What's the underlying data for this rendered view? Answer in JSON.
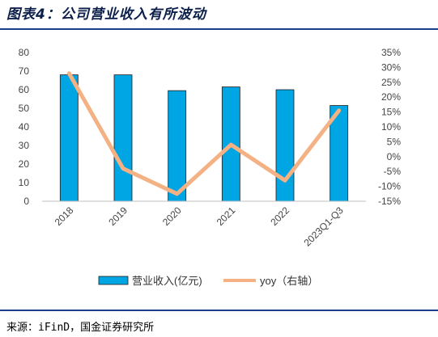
{
  "header": {
    "title": "图表4：公司营业收入有所波动"
  },
  "footer": {
    "source": "来源：iFinD，国金证券研究所"
  },
  "chart_data": {
    "type": "bar",
    "categories": [
      "2018",
      "2019",
      "2020",
      "2021",
      "2022",
      "2023Q1-Q3"
    ],
    "series": [
      {
        "name": "营业收入(亿元)",
        "type": "bar",
        "axis": "left",
        "values": [
          68,
          68,
          59.5,
          61.5,
          60,
          51.5
        ],
        "color": "#00a6e3"
      },
      {
        "name": "yoy（右轴）",
        "type": "line",
        "axis": "right",
        "values": [
          28,
          -4,
          -12.5,
          4,
          -8,
          15.5
        ],
        "color": "#f4b183"
      }
    ],
    "y_left": {
      "ylim": [
        0,
        80
      ],
      "ticks": [
        "0",
        "10",
        "20",
        "30",
        "40",
        "50",
        "60",
        "70",
        "80"
      ]
    },
    "y_right": {
      "ylim": [
        -15,
        35
      ],
      "ticks": [
        "-15%",
        "-10%",
        "-5%",
        "0%",
        "5%",
        "10%",
        "15%",
        "20%",
        "25%",
        "30%",
        "35%"
      ]
    },
    "grid": false,
    "legend_position": "bottom"
  }
}
